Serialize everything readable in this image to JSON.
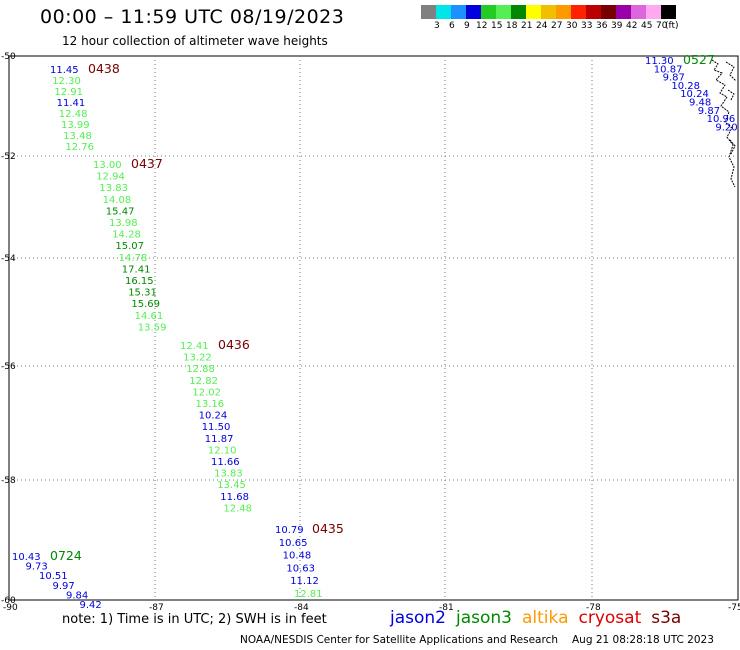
{
  "title": "00:00 – 11:59 UTC 08/19/2023",
  "subtitle": "12 hour collection of altimeter wave heights",
  "legend": {
    "swatches": [
      {
        "color": "#808080",
        "label": "3"
      },
      {
        "color": "#00e5e5",
        "label": "6"
      },
      {
        "color": "#1e90ff",
        "label": "9"
      },
      {
        "color": "#0000dd",
        "label": "12"
      },
      {
        "color": "#22cc22",
        "label": "15"
      },
      {
        "color": "#55ee55",
        "label": "18"
      },
      {
        "color": "#008800",
        "label": "21"
      },
      {
        "color": "#ffff00",
        "label": "24"
      },
      {
        "color": "#f0c000",
        "label": "27"
      },
      {
        "color": "#ff9900",
        "label": "30"
      },
      {
        "color": "#ff2200",
        "label": "33"
      },
      {
        "color": "#bb0000",
        "label": "36"
      },
      {
        "color": "#770000",
        "label": "39"
      },
      {
        "color": "#9900aa",
        "label": "42"
      },
      {
        "color": "#dd66dd",
        "label": "45"
      },
      {
        "color": "#ffaaee",
        "label": "70"
      },
      {
        "color": "#000000",
        "label": "(ft)"
      }
    ]
  },
  "map": {
    "lat_ticks": [
      "-50",
      "-52",
      "-54",
      "-56",
      "-58",
      "-60"
    ],
    "lon_ticks": [
      "-90",
      "-87",
      "-84",
      "-81",
      "-78",
      "-75"
    ],
    "colors": {
      "jason2": "#0000dd",
      "jason3_light": "#55ee55",
      "jason3_dark": "#008800",
      "time": "#770000",
      "time_green": "#008800"
    },
    "tracks": [
      {
        "time": "0438",
        "time_color": "#770000",
        "points": [
          {
            "v": "11.45",
            "c": "#0000dd"
          },
          {
            "v": "12.30",
            "c": "#55ee55"
          },
          {
            "v": "12.91",
            "c": "#55ee55"
          },
          {
            "v": "11.41",
            "c": "#0000dd"
          },
          {
            "v": "12.48",
            "c": "#55ee55"
          },
          {
            "v": "13.99",
            "c": "#55ee55"
          },
          {
            "v": "13.48",
            "c": "#55ee55"
          },
          {
            "v": "12.76",
            "c": "#55ee55"
          }
        ]
      },
      {
        "time": "0437",
        "time_color": "#770000",
        "points": [
          {
            "v": "13.00",
            "c": "#55ee55"
          },
          {
            "v": "12.94",
            "c": "#55ee55"
          },
          {
            "v": "13.83",
            "c": "#55ee55"
          },
          {
            "v": "14.08",
            "c": "#55ee55"
          },
          {
            "v": "15.47",
            "c": "#008800"
          },
          {
            "v": "13.98",
            "c": "#55ee55"
          },
          {
            "v": "14.28",
            "c": "#55ee55"
          },
          {
            "v": "15.07",
            "c": "#008800"
          },
          {
            "v": "14.78",
            "c": "#55ee55"
          },
          {
            "v": "17.41",
            "c": "#008800"
          },
          {
            "v": "16.15",
            "c": "#008800"
          },
          {
            "v": "15.31",
            "c": "#008800"
          },
          {
            "v": "15.69",
            "c": "#008800"
          },
          {
            "v": "14.61",
            "c": "#55ee55"
          },
          {
            "v": "13.59",
            "c": "#55ee55"
          }
        ]
      },
      {
        "time": "0436",
        "time_color": "#770000",
        "points": [
          {
            "v": "12.41",
            "c": "#55ee55"
          },
          {
            "v": "13.22",
            "c": "#55ee55"
          },
          {
            "v": "12.88",
            "c": "#55ee55"
          },
          {
            "v": "12.82",
            "c": "#55ee55"
          },
          {
            "v": "12.02",
            "c": "#55ee55"
          },
          {
            "v": "13.16",
            "c": "#55ee55"
          },
          {
            "v": "10.24",
            "c": "#0000dd"
          },
          {
            "v": "11.50",
            "c": "#0000dd"
          },
          {
            "v": "11.87",
            "c": "#0000dd"
          },
          {
            "v": "12.10",
            "c": "#55ee55"
          },
          {
            "v": "11.66",
            "c": "#0000dd"
          },
          {
            "v": "13.83",
            "c": "#55ee55"
          },
          {
            "v": "13.45",
            "c": "#55ee55"
          },
          {
            "v": "11.68",
            "c": "#0000dd"
          },
          {
            "v": "12.48",
            "c": "#55ee55"
          }
        ]
      },
      {
        "time": "0435",
        "time_color": "#770000",
        "points": [
          {
            "v": "10.79",
            "c": "#0000dd"
          },
          {
            "v": "10.65",
            "c": "#0000dd"
          },
          {
            "v": "10.48",
            "c": "#0000dd"
          },
          {
            "v": "10.63",
            "c": "#0000dd"
          },
          {
            "v": "11.12",
            "c": "#0000dd"
          },
          {
            "v": "12.81",
            "c": "#55ee55"
          }
        ]
      },
      {
        "time": "0724",
        "time_color": "#008800",
        "points": [
          {
            "v": "10.43",
            "c": "#0000dd"
          },
          {
            "v": "9.73",
            "c": "#0000dd"
          },
          {
            "v": "10.51",
            "c": "#0000dd"
          },
          {
            "v": "9.97",
            "c": "#0000dd"
          },
          {
            "v": "9.84",
            "c": "#0000dd"
          },
          {
            "v": "9.42",
            "c": "#0000dd"
          }
        ]
      },
      {
        "time": "0527",
        "time_color": "#008800",
        "points": [
          {
            "v": "11.30",
            "c": "#0000dd"
          },
          {
            "v": "10.87",
            "c": "#0000dd"
          },
          {
            "v": "9.87",
            "c": "#0000dd"
          },
          {
            "v": "10.28",
            "c": "#0000dd"
          },
          {
            "v": "10.24",
            "c": "#0000dd"
          },
          {
            "v": "9.48",
            "c": "#0000dd"
          },
          {
            "v": "9.87",
            "c": "#0000dd"
          },
          {
            "v": "10.96",
            "c": "#0000dd"
          },
          {
            "v": "9.20",
            "c": "#0000dd"
          }
        ]
      }
    ]
  },
  "note": "note:  1) Time is in UTC;  2) SWH is in feet",
  "satellites": [
    {
      "name": "jason2",
      "color": "#0000dd"
    },
    {
      "name": "jason3",
      "color": "#008800"
    },
    {
      "name": "altika",
      "color": "#ff9900"
    },
    {
      "name": "cryosat",
      "color": "#dd0000"
    },
    {
      "name": "s3a",
      "color": "#770000"
    }
  ],
  "footer": {
    "org": "NOAA/NESDIS Center for Satellite Applications and Research",
    "timestamp": "Aug 21 08:28:18 UTC 2023"
  }
}
